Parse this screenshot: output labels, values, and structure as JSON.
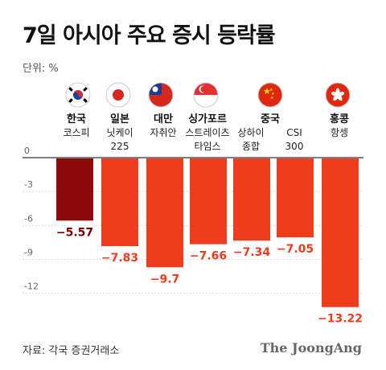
{
  "title": "7일 아시아 주요 증시 등락률",
  "unit_label": "단위: %",
  "source": "자료: 각국 증권거래소",
  "brand": "The JoongAng",
  "colors": {
    "korea_bar": "#8b0a0a",
    "other_bar": "#ef3c1c",
    "korea_label": "#7a0000",
    "other_label": "#ef3c1c"
  },
  "chart_data": {
    "type": "bar",
    "ylim": [
      -14,
      0
    ],
    "yticks": [
      0,
      -3,
      -6,
      -9,
      -12
    ],
    "ytick_labels": [
      "0",
      "-3",
      "-6",
      "-9",
      "-12"
    ],
    "categories": [
      {
        "country": "한국",
        "index": "코스피",
        "flag": "korea-flag"
      },
      {
        "country": "일본",
        "index": "닛케이 225",
        "flag": "japan-flag"
      },
      {
        "country": "대만",
        "index": "자취안",
        "flag": "taiwan-flag"
      },
      {
        "country": "싱가포르",
        "index": "스트레이츠 타임스",
        "flag": "singapore-flag"
      },
      {
        "country": "중국",
        "index": "상하이 종합",
        "flag": "china-flag"
      },
      {
        "country": "",
        "index": "CSI 300",
        "flag": ""
      },
      {
        "country": "홍콩",
        "index": "항셍",
        "flag": "hongkong-flag"
      }
    ],
    "values": [
      -5.57,
      -7.83,
      -9.7,
      -7.66,
      -7.34,
      -7.05,
      -13.22
    ],
    "value_labels": [
      "−5.57",
      "−7.83",
      "−9.7",
      "−7.66",
      "−7.34",
      "−7.05",
      "−13.22"
    ]
  }
}
